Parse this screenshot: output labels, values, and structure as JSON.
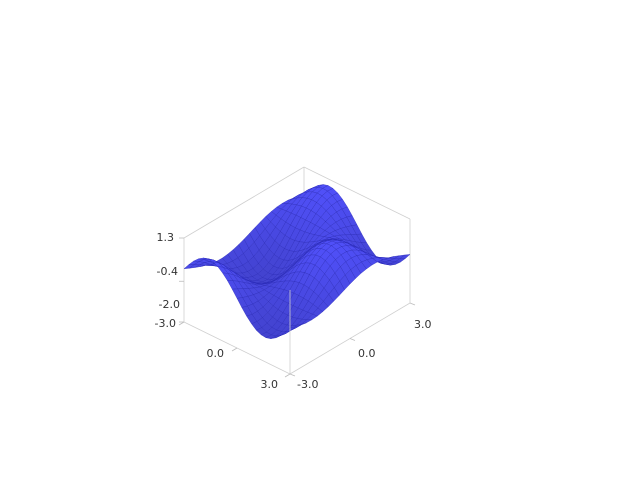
{
  "chart_data": {
    "type": "surface",
    "title": "",
    "function_note": "",
    "xlim": [
      -3.0,
      3.0
    ],
    "ylim": [
      -3.0,
      3.0
    ],
    "zlim": [
      -2.0,
      1.3
    ],
    "x_ticks": [
      "-3.0",
      "0.0",
      "3.0"
    ],
    "y_ticks": [
      "-3.0",
      "0.0",
      "3.0"
    ],
    "z_ticks": [
      "1.3",
      "-0.4",
      "-2.0"
    ],
    "x_tick_values": [
      -3.0,
      0.0,
      3.0
    ],
    "y_tick_values": [
      -3.0,
      0.0,
      3.0
    ],
    "z_tick_values": [
      1.3,
      -0.4,
      -2.0
    ],
    "grid": false,
    "surface_color": "#4a4ae6",
    "surface_edge_color": "#2a2ab8",
    "box_color": "#cfcfcf",
    "grid_resolution": 22
  }
}
